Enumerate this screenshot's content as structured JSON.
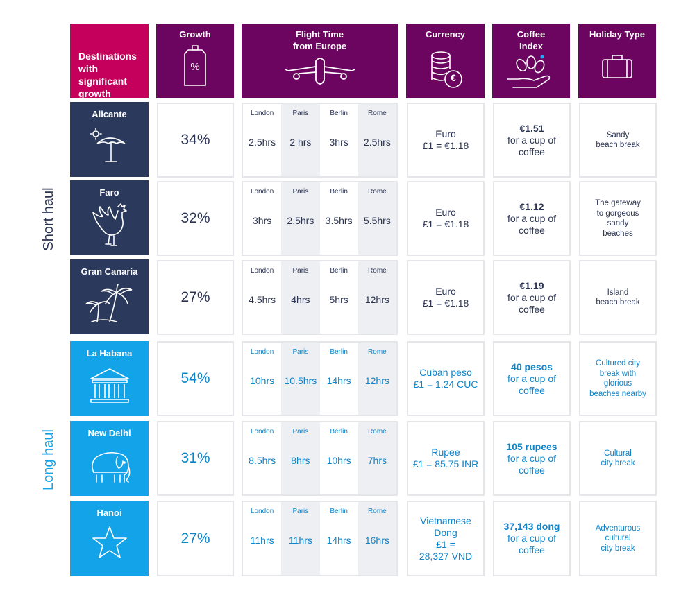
{
  "corner_label": "Destinations\nwith\nsignificant\ngrowth",
  "headers": {
    "growth": "Growth",
    "growth_icon_text": "%",
    "flight": "Flight Time\nfrom Europe",
    "currency": "Currency",
    "coffee": "Coffee\nIndex",
    "holiday": "Holiday Type"
  },
  "currency_icon_text": "€",
  "group_labels": {
    "short": "Short haul",
    "long": "Long haul"
  },
  "cities": [
    "London",
    "Paris",
    "Berlin",
    "Rome"
  ],
  "rows": [
    {
      "name": "Alicante",
      "icon": "beach-umbrella-icon",
      "growth": "34%",
      "times": [
        "2.5hrs",
        "2 hrs",
        "3hrs",
        "2.5hrs"
      ],
      "currency_name": "Euro",
      "currency_rate": "£1 = €1.18",
      "coffee_price": "€1.51",
      "coffee_note": "for a cup of\ncoffee",
      "holiday": "Sandy\nbeach break"
    },
    {
      "name": "Faro",
      "icon": "rooster-icon",
      "growth": "32%",
      "times": [
        "3hrs",
        "2.5hrs",
        "3.5hrs",
        "5.5hrs"
      ],
      "currency_name": "Euro",
      "currency_rate": "£1 = €1.18",
      "coffee_price": "€1.12",
      "coffee_note": "for a cup of\ncoffee",
      "holiday": "The gateway\nto gorgeous\nsandy\nbeaches"
    },
    {
      "name": "Gran Canaria",
      "icon": "palm-trees-icon",
      "growth": "27%",
      "times": [
        "4.5hrs",
        "4hrs",
        "5hrs",
        "12hrs"
      ],
      "currency_name": "Euro",
      "currency_rate": "£1 = €1.18",
      "coffee_price": "€1.19",
      "coffee_note": "for a cup of\ncoffee",
      "holiday": "Island\nbeach break"
    },
    {
      "name": "La Habana",
      "icon": "building-columns-icon",
      "growth": "54%",
      "times": [
        "10hrs",
        "10.5hrs",
        "14hrs",
        "12hrs"
      ],
      "currency_name": "Cuban peso",
      "currency_rate": "£1 = 1.24 CUC",
      "coffee_price": "40 pesos",
      "coffee_note": "for a cup of\ncoffee",
      "holiday": "Cultured city\nbreak with\nglorious\nbeaches nearby"
    },
    {
      "name": "New Delhi",
      "icon": "elephant-icon",
      "growth": "31%",
      "times": [
        "8.5hrs",
        "8hrs",
        "10hrs",
        "7hrs"
      ],
      "currency_name": "Rupee",
      "currency_rate": "£1 = 85.75 INR",
      "coffee_price": "105 rupees",
      "coffee_note": "for a cup of\ncoffee",
      "holiday": "Cultural\ncity break"
    },
    {
      "name": "Hanoi",
      "icon": "star-icon",
      "growth": "27%",
      "times": [
        "11hrs",
        "11hrs",
        "14hrs",
        "16hrs"
      ],
      "currency_name": "Vietnamese\nDong",
      "currency_rate": "£1 =\n28,327 VND",
      "coffee_price": "37,143 dong",
      "coffee_note": "for a cup of\ncoffee",
      "holiday": "Adventurous\ncultural\ncity break"
    }
  ]
}
